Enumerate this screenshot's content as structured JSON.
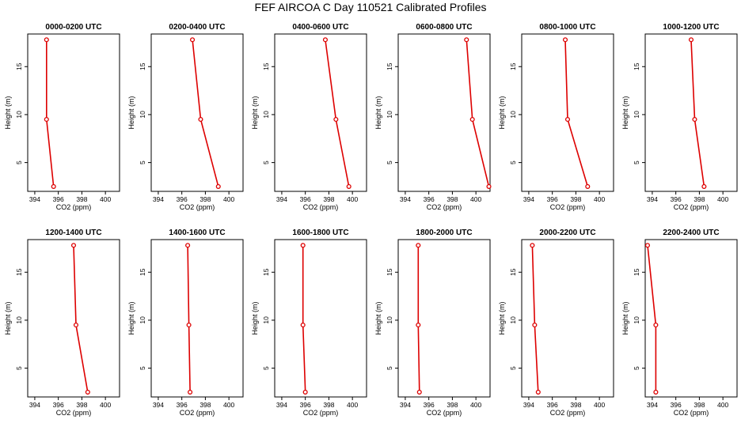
{
  "title": "FEF AIRCOA C  Day 110521  Calibrated Profiles",
  "chart_data": [
    {
      "type": "line",
      "title": "0000-0200 UTC",
      "xlabel": "CO2 (ppm)",
      "ylabel": "Height (m)",
      "xlim": [
        393.4,
        401.2
      ],
      "ylim": [
        2,
        18.4
      ],
      "x_ticks": [
        394,
        396,
        398,
        400
      ],
      "y_ticks": [
        5,
        10,
        15
      ],
      "color": "#dd0000",
      "series": [
        {
          "x": [
            395.0,
            395.0,
            395.6
          ],
          "y": [
            17.8,
            9.5,
            2.5
          ]
        }
      ]
    },
    {
      "type": "line",
      "title": "0200-0400 UTC",
      "xlabel": "CO2 (ppm)",
      "ylabel": "Height (m)",
      "xlim": [
        393.4,
        401.2
      ],
      "ylim": [
        2,
        18.4
      ],
      "x_ticks": [
        394,
        396,
        398,
        400
      ],
      "y_ticks": [
        5,
        10,
        15
      ],
      "color": "#dd0000",
      "series": [
        {
          "x": [
            396.9,
            397.6,
            399.1
          ],
          "y": [
            17.8,
            9.5,
            2.5
          ]
        }
      ]
    },
    {
      "type": "line",
      "title": "0400-0600 UTC",
      "xlabel": "CO2 (ppm)",
      "ylabel": "Height (m)",
      "xlim": [
        393.4,
        401.2
      ],
      "ylim": [
        2,
        18.4
      ],
      "x_ticks": [
        394,
        396,
        398,
        400
      ],
      "y_ticks": [
        5,
        10,
        15
      ],
      "color": "#dd0000",
      "series": [
        {
          "x": [
            397.7,
            398.6,
            399.7
          ],
          "y": [
            17.8,
            9.5,
            2.5
          ]
        }
      ]
    },
    {
      "type": "line",
      "title": "0600-0800 UTC",
      "xlabel": "CO2 (ppm)",
      "ylabel": "Height (m)",
      "xlim": [
        393.4,
        401.2
      ],
      "ylim": [
        2,
        18.4
      ],
      "x_ticks": [
        394,
        396,
        398,
        400
      ],
      "y_ticks": [
        5,
        10,
        15
      ],
      "color": "#dd0000",
      "series": [
        {
          "x": [
            399.2,
            399.7,
            401.1
          ],
          "y": [
            17.8,
            9.5,
            2.5
          ]
        }
      ]
    },
    {
      "type": "line",
      "title": "0800-1000 UTC",
      "xlabel": "CO2 (ppm)",
      "ylabel": "Height (m)",
      "xlim": [
        393.4,
        401.2
      ],
      "ylim": [
        2,
        18.4
      ],
      "x_ticks": [
        394,
        396,
        398,
        400
      ],
      "y_ticks": [
        5,
        10,
        15
      ],
      "color": "#dd0000",
      "series": [
        {
          "x": [
            397.1,
            397.3,
            399.0
          ],
          "y": [
            17.8,
            9.5,
            2.5
          ]
        }
      ]
    },
    {
      "type": "line",
      "title": "1000-1200 UTC",
      "xlabel": "CO2 (ppm)",
      "ylabel": "Height (m)",
      "xlim": [
        393.4,
        401.2
      ],
      "ylim": [
        2,
        18.4
      ],
      "x_ticks": [
        394,
        396,
        398,
        400
      ],
      "y_ticks": [
        5,
        10,
        15
      ],
      "color": "#dd0000",
      "series": [
        {
          "x": [
            397.3,
            397.6,
            398.4
          ],
          "y": [
            17.8,
            9.5,
            2.5
          ]
        }
      ]
    },
    {
      "type": "line",
      "title": "1200-1400 UTC",
      "xlabel": "CO2 (ppm)",
      "ylabel": "Height (m)",
      "xlim": [
        393.4,
        401.2
      ],
      "ylim": [
        2,
        18.4
      ],
      "x_ticks": [
        394,
        396,
        398,
        400
      ],
      "y_ticks": [
        5,
        10,
        15
      ],
      "color": "#dd0000",
      "series": [
        {
          "x": [
            397.3,
            397.5,
            398.5
          ],
          "y": [
            17.8,
            9.5,
            2.5
          ]
        }
      ]
    },
    {
      "type": "line",
      "title": "1400-1600 UTC",
      "xlabel": "CO2 (ppm)",
      "ylabel": "Height (m)",
      "xlim": [
        393.4,
        401.2
      ],
      "ylim": [
        2,
        18.4
      ],
      "x_ticks": [
        394,
        396,
        398,
        400
      ],
      "y_ticks": [
        5,
        10,
        15
      ],
      "color": "#dd0000",
      "series": [
        {
          "x": [
            396.5,
            396.6,
            396.7
          ],
          "y": [
            17.8,
            9.5,
            2.5
          ]
        }
      ]
    },
    {
      "type": "line",
      "title": "1600-1800 UTC",
      "xlabel": "CO2 (ppm)",
      "ylabel": "Height (m)",
      "xlim": [
        393.4,
        401.2
      ],
      "ylim": [
        2,
        18.4
      ],
      "x_ticks": [
        394,
        396,
        398,
        400
      ],
      "y_ticks": [
        5,
        10,
        15
      ],
      "color": "#dd0000",
      "series": [
        {
          "x": [
            395.8,
            395.8,
            396.0
          ],
          "y": [
            17.8,
            9.5,
            2.5
          ]
        }
      ]
    },
    {
      "type": "line",
      "title": "1800-2000 UTC",
      "xlabel": "CO2 (ppm)",
      "ylabel": "Height (m)",
      "xlim": [
        393.4,
        401.2
      ],
      "ylim": [
        2,
        18.4
      ],
      "x_ticks": [
        394,
        396,
        398,
        400
      ],
      "y_ticks": [
        5,
        10,
        15
      ],
      "color": "#dd0000",
      "series": [
        {
          "x": [
            395.1,
            395.1,
            395.2
          ],
          "y": [
            17.8,
            9.5,
            2.5
          ]
        }
      ]
    },
    {
      "type": "line",
      "title": "2000-2200 UTC",
      "xlabel": "CO2 (ppm)",
      "ylabel": "Height (m)",
      "xlim": [
        393.4,
        401.2
      ],
      "ylim": [
        2,
        18.4
      ],
      "x_ticks": [
        394,
        396,
        398,
        400
      ],
      "y_ticks": [
        5,
        10,
        15
      ],
      "color": "#dd0000",
      "series": [
        {
          "x": [
            394.3,
            394.5,
            394.8
          ],
          "y": [
            17.8,
            9.5,
            2.5
          ]
        }
      ]
    },
    {
      "type": "line",
      "title": "2200-2400 UTC",
      "xlabel": "CO2 (ppm)",
      "ylabel": "Height (m)",
      "xlim": [
        393.4,
        401.2
      ],
      "ylim": [
        2,
        18.4
      ],
      "x_ticks": [
        394,
        396,
        398,
        400
      ],
      "y_ticks": [
        5,
        10,
        15
      ],
      "color": "#dd0000",
      "series": [
        {
          "x": [
            393.6,
            394.3,
            394.3
          ],
          "y": [
            17.8,
            9.5,
            2.5
          ]
        }
      ]
    }
  ]
}
